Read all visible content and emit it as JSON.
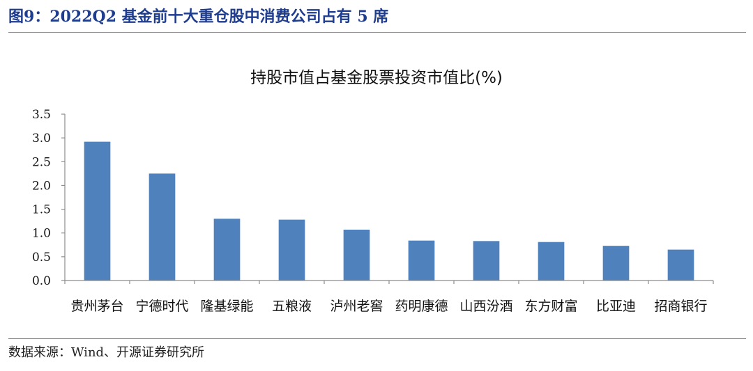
{
  "figure": {
    "title": "图9：2022Q2 基金前十大重仓股中消费公司占有 5 席",
    "source": "数据来源：Wind、开源证券研究所"
  },
  "colors": {
    "bar": "#4f81bd",
    "title": "#1f3d8f",
    "axis": "#8c8c8c"
  },
  "chart_data": {
    "type": "bar",
    "title": "持股市值占基金股票投资市值比(%)",
    "xlabel": "",
    "ylabel": "",
    "ylim": [
      0,
      3.5
    ],
    "yticks": [
      "0.0",
      "0.5",
      "1.0",
      "1.5",
      "2.0",
      "2.5",
      "3.0",
      "3.5"
    ],
    "grid": false,
    "categories": [
      "贵州茅台",
      "宁德时代",
      "隆基绿能",
      "五粮液",
      "泸州老窖",
      "药明康德",
      "山西汾酒",
      "东方财富",
      "比亚迪",
      "招商银行"
    ],
    "values": [
      2.92,
      2.25,
      1.3,
      1.28,
      1.07,
      0.84,
      0.83,
      0.81,
      0.73,
      0.65
    ]
  }
}
